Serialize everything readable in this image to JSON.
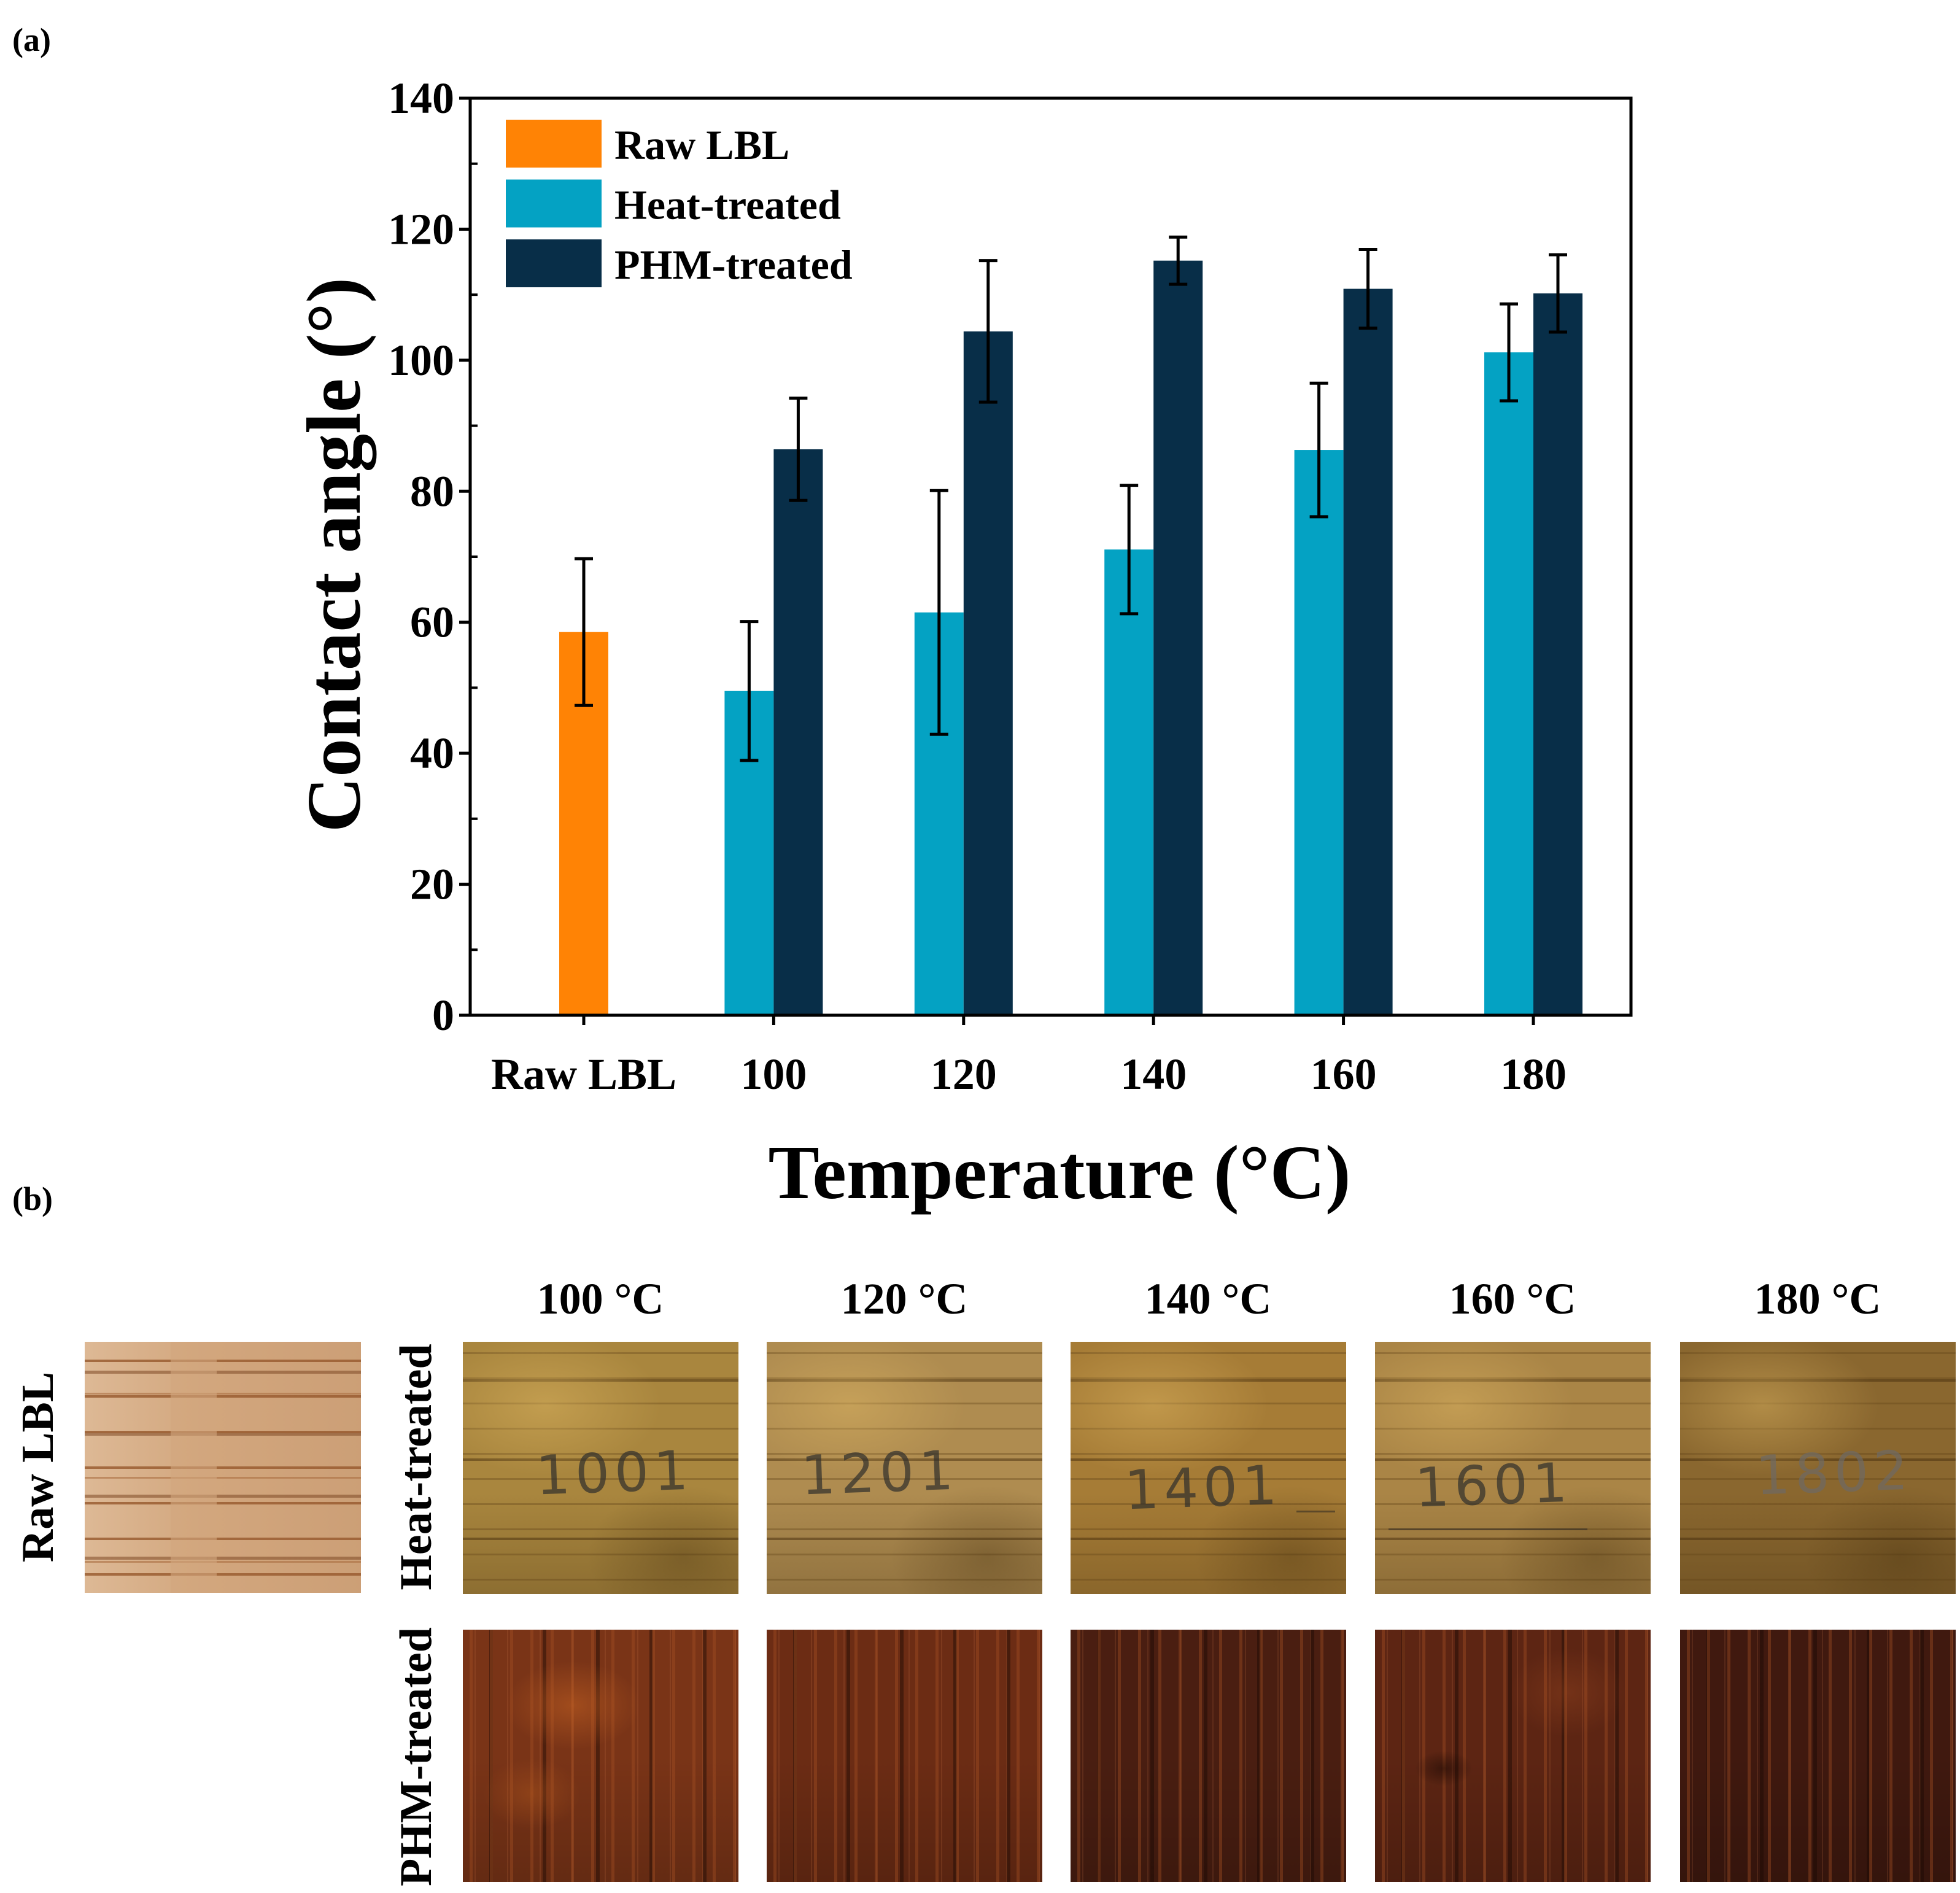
{
  "figure": {
    "panel_a_label": "(a)",
    "panel_b_label": "(b)"
  },
  "chart_data": {
    "type": "bar",
    "title": "",
    "xlabel": "Temperature (°C)",
    "ylabel": "Contact angle (°)",
    "ylim": [
      0,
      140
    ],
    "yticks": [
      0,
      20,
      40,
      60,
      80,
      100,
      120,
      140
    ],
    "y_minor_step": 10,
    "grid": false,
    "legend_position": "top-left",
    "categories": [
      "Raw LBL",
      "100",
      "120",
      "140",
      "160",
      "180"
    ],
    "series": [
      {
        "name": "Raw LBL",
        "color": "#FF8305",
        "values": [
          58.5,
          null,
          null,
          null,
          null,
          null
        ],
        "errors": [
          11.2,
          null,
          null,
          null,
          null,
          null
        ]
      },
      {
        "name": "Heat-treated",
        "color": "#04A2C3",
        "values": [
          null,
          49.5,
          61.5,
          71.1,
          86.3,
          101.2
        ],
        "errors": [
          null,
          10.6,
          18.6,
          9.8,
          10.2,
          7.4
        ]
      },
      {
        "name": "PHM-treated",
        "color": "#082E48",
        "values": [
          null,
          86.4,
          104.4,
          115.2,
          110.9,
          110.2
        ],
        "errors": [
          null,
          7.8,
          10.8,
          3.6,
          6.0,
          5.9
        ]
      }
    ]
  },
  "photos": {
    "column_headers": [
      "100 °C",
      "120 °C",
      "140 °C",
      "160 °C",
      "180 °C"
    ],
    "row_labels": {
      "raw": "Raw LBL",
      "heat": "Heat-treated",
      "phm": "PHM-treated"
    },
    "sample_marks": [
      "1001",
      "1201",
      "1401",
      "1601",
      "1802"
    ]
  }
}
